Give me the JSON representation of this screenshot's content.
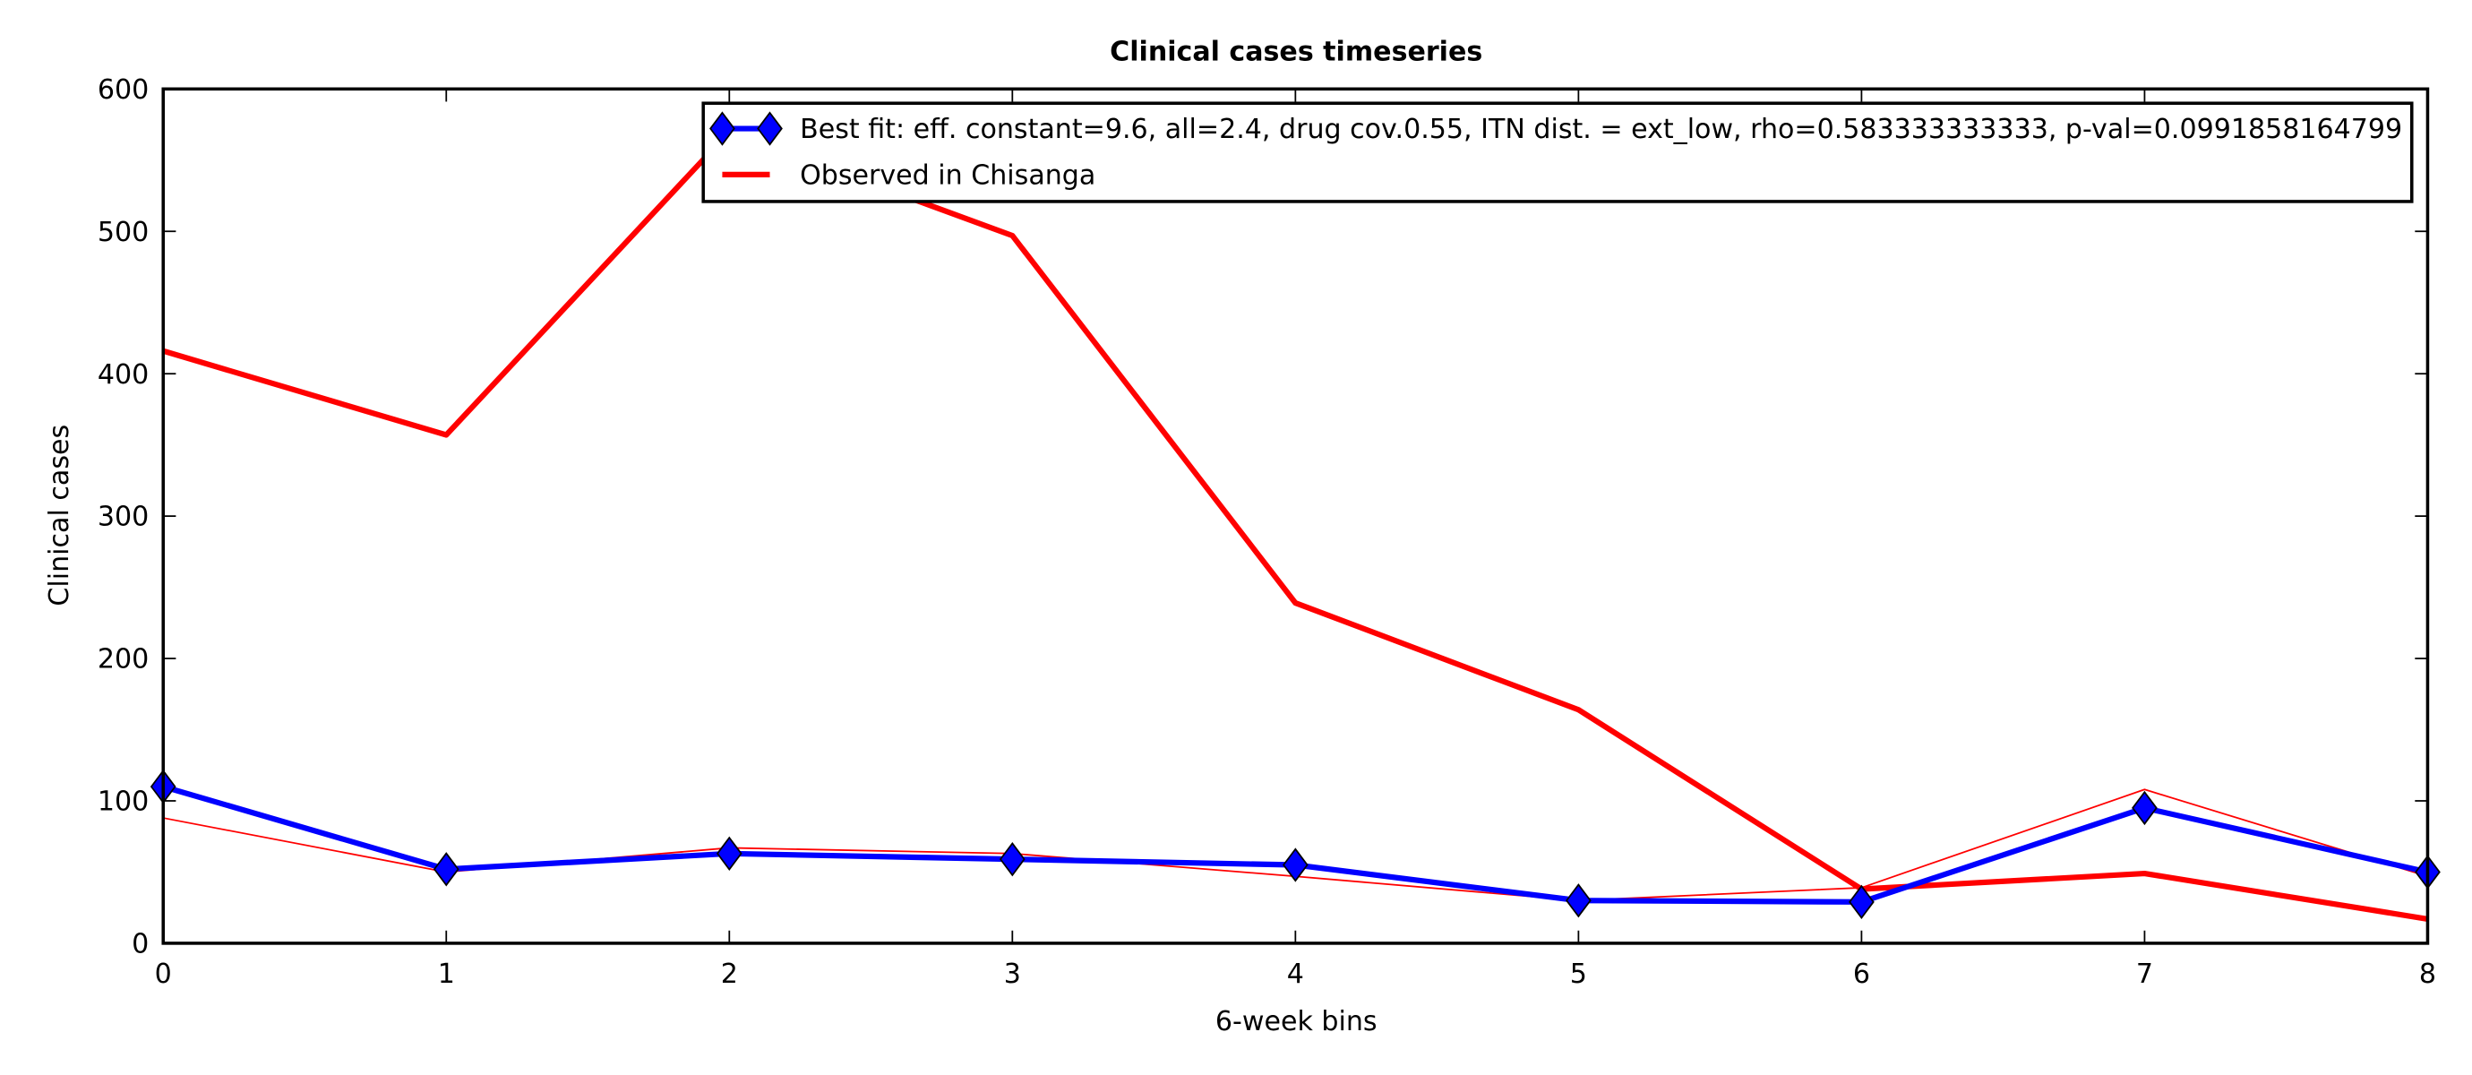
{
  "chart_data": {
    "type": "line",
    "title": "Clinical cases timeseries",
    "xlabel": "6-week bins",
    "ylabel": "Clinical cases",
    "x": [
      0,
      1,
      2,
      3,
      4,
      5,
      6,
      7,
      8
    ],
    "xlim": [
      0,
      8
    ],
    "ylim": [
      0,
      600
    ],
    "xticks": [
      0,
      1,
      2,
      3,
      4,
      5,
      6,
      7,
      8
    ],
    "yticks": [
      0,
      100,
      200,
      300,
      400,
      500,
      600
    ],
    "legend": "upper right",
    "series": [
      {
        "name": "Observed in Chisanga",
        "color": "#ff0000",
        "width": 3.5,
        "values": [
          416,
          357,
          570,
          497,
          239,
          164,
          38,
          49,
          17
        ]
      },
      {
        "color": "#ff0000",
        "width": 1,
        "values": [
          88,
          50,
          67,
          63,
          47,
          30,
          39,
          108,
          47
        ]
      },
      {
        "name": "Best fit: eff. constant=9.6, all=2.4, drug cov.0.55, ITN dist. = ext_low, rho=0.583333333333, p-val=0.0991858164799",
        "color": "#0000ff",
        "width": 3.5,
        "marker": "D",
        "values": [
          110,
          52,
          63,
          59,
          55,
          30,
          29,
          95,
          50
        ]
      }
    ]
  }
}
